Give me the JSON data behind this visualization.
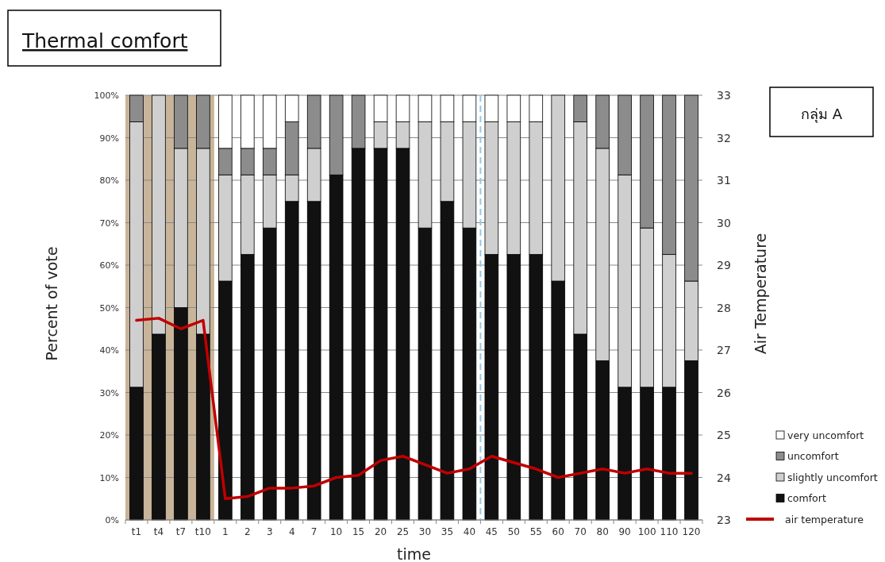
{
  "chart_data": {
    "type": "bar",
    "title": "Thermal comfort",
    "xlabel": "time",
    "ylabel": "Percent of vote",
    "y2label": "Air Temperature",
    "annotations": [
      "กลุ่ม A"
    ],
    "categories": [
      "t1",
      "t4",
      "t7",
      "t10",
      "1",
      "2",
      "3",
      "4",
      "7",
      "10",
      "15",
      "20",
      "25",
      "30",
      "35",
      "40",
      "45",
      "50",
      "55",
      "60",
      "70",
      "80",
      "90",
      "100",
      "110",
      "120"
    ],
    "stacked": true,
    "series": [
      {
        "name": "comfort",
        "color": "#111111",
        "values": [
          31.25,
          43.75,
          50,
          43.75,
          56.25,
          62.5,
          68.75,
          75,
          75,
          81.25,
          87.5,
          87.5,
          87.5,
          68.75,
          75,
          68.75,
          62.5,
          62.5,
          62.5,
          56.25,
          43.75,
          37.5,
          31.25,
          31.25,
          31.25,
          37.5
        ]
      },
      {
        "name": "slightly uncomfort",
        "color": "#cfcfcf",
        "values": [
          62.5,
          56.25,
          37.5,
          43.75,
          25,
          18.75,
          12.5,
          6.25,
          12.5,
          0,
          0,
          6.25,
          6.25,
          25,
          18.75,
          25,
          31.25,
          31.25,
          31.25,
          43.75,
          50,
          50,
          50,
          37.5,
          31.25,
          18.75
        ]
      },
      {
        "name": "uncomfort",
        "color": "#8c8c8c",
        "values": [
          6.25,
          0,
          12.5,
          12.5,
          6.25,
          6.25,
          6.25,
          12.5,
          12.5,
          18.75,
          12.5,
          0,
          0,
          0,
          0,
          0,
          0,
          0,
          0,
          0,
          6.25,
          12.5,
          18.75,
          31.25,
          37.5,
          43.75
        ]
      },
      {
        "name": "very uncomfort",
        "color": "#ffffff",
        "values": [
          0,
          0,
          0,
          0,
          12.5,
          12.5,
          12.5,
          6.25,
          0,
          0,
          0,
          6.25,
          6.25,
          6.25,
          6.25,
          6.25,
          6.25,
          6.25,
          6.25,
          0,
          0,
          0,
          0,
          0,
          0,
          0
        ]
      },
      {
        "name": "air temperature",
        "type": "line",
        "axis": "y2",
        "color": "#c00000",
        "marker": "none",
        "line_style": "solid",
        "values": [
          27.7,
          27.75,
          27.5,
          27.7,
          23.5,
          23.55,
          23.75,
          23.75,
          23.8,
          24.0,
          24.05,
          24.4,
          24.5,
          24.3,
          24.1,
          24.2,
          24.5,
          24.35,
          24.2,
          24.0,
          24.1,
          24.2,
          24.1,
          24.2,
          24.1,
          24.1
        ]
      }
    ],
    "ylim": [
      0,
      100
    ],
    "yticks": [
      {
        "value": 0,
        "label": "0%"
      },
      {
        "value": 10,
        "label": "10%"
      },
      {
        "value": 20,
        "label": "20%"
      },
      {
        "value": 30,
        "label": "30%"
      },
      {
        "value": 40,
        "label": "40%"
      },
      {
        "value": 50,
        "label": "50%"
      },
      {
        "value": 60,
        "label": "60%"
      },
      {
        "value": 70,
        "label": "70%"
      },
      {
        "value": 80,
        "label": "80%"
      },
      {
        "value": 90,
        "label": "90%"
      },
      {
        "value": 100,
        "label": "100%"
      }
    ],
    "y2lim": [
      23,
      33
    ],
    "y2ticks": [
      23,
      24,
      25,
      26,
      27,
      28,
      29,
      30,
      31,
      32,
      33
    ],
    "bands": [
      {
        "axis": "x",
        "from": "t1",
        "to": "t10",
        "color": "#c8b49a"
      }
    ],
    "ref_lines": [
      {
        "axis": "x",
        "value": "45",
        "color": "#8ecae6",
        "line_style": "dashed"
      }
    ],
    "grid": "y",
    "legend": "bottom right"
  }
}
